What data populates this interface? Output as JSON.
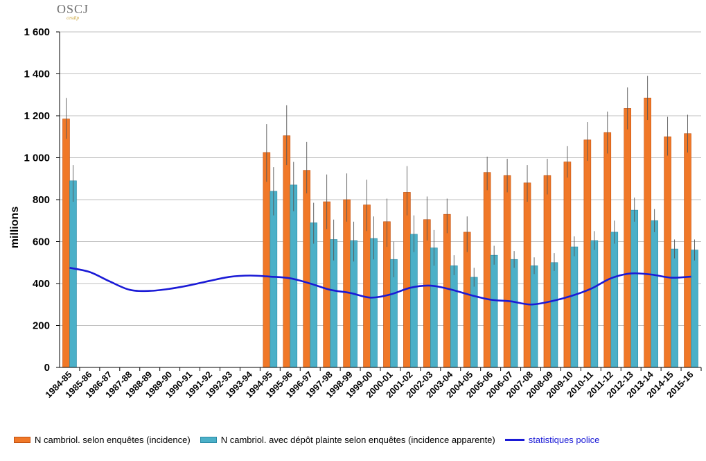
{
  "logo": {
    "text": "OSCJ",
    "subtext": "cesdip"
  },
  "colors": {
    "bar1": "#f07828",
    "bar1_edge": "#c05010",
    "bar2": "#4bb0c8",
    "bar2_edge": "#2a8aa6",
    "line": "#1a1ad6",
    "grid": "#bfbfbf",
    "error": "#555555"
  },
  "chart_data": {
    "type": "bar",
    "ylabel": "millions",
    "ylim": [
      0,
      1600
    ],
    "yticks": [
      0,
      200,
      400,
      600,
      800,
      1000,
      1200,
      1400,
      1600
    ],
    "ytick_labels": [
      "0",
      "200",
      "400",
      "600",
      "800",
      "1 000",
      "1 200",
      "1 400",
      "1 600"
    ],
    "grid": true,
    "legend_position": "bottom",
    "categories": [
      "1984-85",
      "1985-86",
      "1986-87",
      "1987-88",
      "1988-89",
      "1989-90",
      "1990-91",
      "1991-92",
      "1992-93",
      "1993-94",
      "1994-95",
      "1995-96",
      "1996-97",
      "1997-98",
      "1998-99",
      "1999-00",
      "2000-01",
      "2001-02",
      "2002-03",
      "2003-04",
      "2004-05",
      "2005-06",
      "2006-07",
      "2007-08",
      "2008-09",
      "2009-10",
      "2010-11",
      "2011-12",
      "2012-13",
      "2013-14",
      "2014-15",
      "2015-16"
    ],
    "series": [
      {
        "name": "N cambriol. selon enquêtes (incidence)",
        "kind": "bar",
        "values": [
          1185,
          null,
          null,
          null,
          null,
          null,
          null,
          null,
          null,
          null,
          1025,
          1105,
          940,
          790,
          800,
          775,
          695,
          835,
          705,
          730,
          645,
          930,
          915,
          880,
          915,
          980,
          1085,
          1120,
          1235,
          1285,
          1100,
          1115
        ],
        "error_upper": [
          1285,
          null,
          null,
          null,
          null,
          null,
          null,
          null,
          null,
          null,
          1160,
          1250,
          1075,
          920,
          925,
          895,
          805,
          960,
          815,
          805,
          720,
          1005,
          995,
          965,
          995,
          1055,
          1170,
          1220,
          1335,
          1390,
          1195,
          1205
        ],
        "error_lower": [
          1090,
          null,
          null,
          null,
          null,
          null,
          null,
          null,
          null,
          null,
          885,
          965,
          830,
          660,
          695,
          650,
          575,
          725,
          605,
          640,
          550,
          845,
          835,
          790,
          825,
          905,
          985,
          1020,
          1135,
          1180,
          1010,
          1025
        ]
      },
      {
        "name": "N cambriol. avec dépôt plainte selon enquêtes (incidence apparente)",
        "kind": "bar",
        "values": [
          890,
          null,
          null,
          null,
          null,
          null,
          null,
          null,
          null,
          null,
          840,
          870,
          690,
          610,
          605,
          615,
          515,
          635,
          570,
          485,
          430,
          535,
          515,
          485,
          500,
          575,
          605,
          645,
          750,
          700,
          565,
          560
        ],
        "error_upper": [
          965,
          null,
          null,
          null,
          null,
          null,
          null,
          null,
          null,
          null,
          955,
          980,
          785,
          705,
          695,
          720,
          600,
          725,
          655,
          535,
          475,
          580,
          555,
          525,
          545,
          625,
          650,
          700,
          810,
          755,
          610,
          610
        ],
        "error_lower": [
          790,
          null,
          null,
          null,
          null,
          null,
          null,
          null,
          null,
          null,
          725,
          745,
          590,
          510,
          505,
          515,
          430,
          550,
          485,
          440,
          385,
          490,
          475,
          445,
          460,
          530,
          560,
          590,
          695,
          645,
          520,
          510
        ]
      },
      {
        "name": "statistiques police",
        "kind": "line",
        "values": [
          475,
          455,
          410,
          370,
          365,
          375,
          392,
          413,
          432,
          438,
          433,
          425,
          400,
          370,
          355,
          333,
          348,
          380,
          390,
          372,
          345,
          323,
          315,
          300,
          315,
          340,
          375,
          425,
          448,
          443,
          428,
          433
        ]
      }
    ]
  }
}
